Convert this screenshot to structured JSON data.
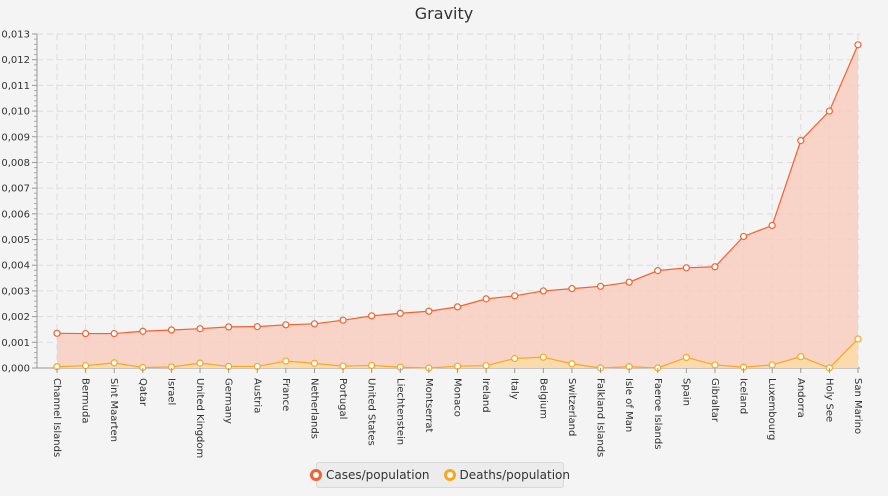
{
  "chart_data": {
    "type": "area",
    "title": "Gravity",
    "xlabel": "",
    "ylabel": "",
    "ylim": [
      0,
      0.013
    ],
    "yticks": [
      "0,000",
      "0,001",
      "0,002",
      "0,003",
      "0,004",
      "0,005",
      "0,006",
      "0,007",
      "0,008",
      "0,009",
      "0,010",
      "0,011",
      "0,012",
      "0,013"
    ],
    "grid": true,
    "legend_position": "bottom",
    "categories": [
      "Channel Islands",
      "Bermuda",
      "Sint Maarten",
      "Qatar",
      "Israel",
      "United Kingdom",
      "Germany",
      "Austria",
      "France",
      "Netherlands",
      "Portugal",
      "United States",
      "Liechtenstein",
      "Montserrat",
      "Monaco",
      "Ireland",
      "Italy",
      "Belgium",
      "Switzerland",
      "Falkland Islands",
      "Isle of Man",
      "Faeroe Islands",
      "Spain",
      "Gibraltar",
      "Iceland",
      "Luxembourg",
      "Andorra",
      "Holy See",
      "San Marino"
    ],
    "series": [
      {
        "name": "Cases/population",
        "color": "#f3622d",
        "fill": "#f7cdc0",
        "values": [
          0.00135,
          0.00134,
          0.00134,
          0.00143,
          0.00148,
          0.00153,
          0.0016,
          0.00161,
          0.00168,
          0.00172,
          0.00186,
          0.00203,
          0.00213,
          0.00221,
          0.00238,
          0.00269,
          0.00281,
          0.003,
          0.00309,
          0.00318,
          0.00334,
          0.00379,
          0.0039,
          0.00394,
          0.00512,
          0.00555,
          0.00885,
          0.01,
          0.01258
        ]
      },
      {
        "name": "Deaths/population",
        "color": "#fba71b",
        "fill": "#fcdca6",
        "values": [
          5e-05,
          9e-05,
          0.0002,
          2e-05,
          4e-05,
          0.00019,
          6e-05,
          6e-05,
          0.00027,
          0.00018,
          7e-05,
          0.0001,
          3e-05,
          0.0,
          7e-05,
          9e-05,
          0.00037,
          0.00042,
          0.00016,
          0.0,
          5e-05,
          0.0,
          0.00041,
          0.00012,
          3e-05,
          0.00012,
          0.00044,
          0.0,
          0.00113
        ]
      }
    ]
  }
}
